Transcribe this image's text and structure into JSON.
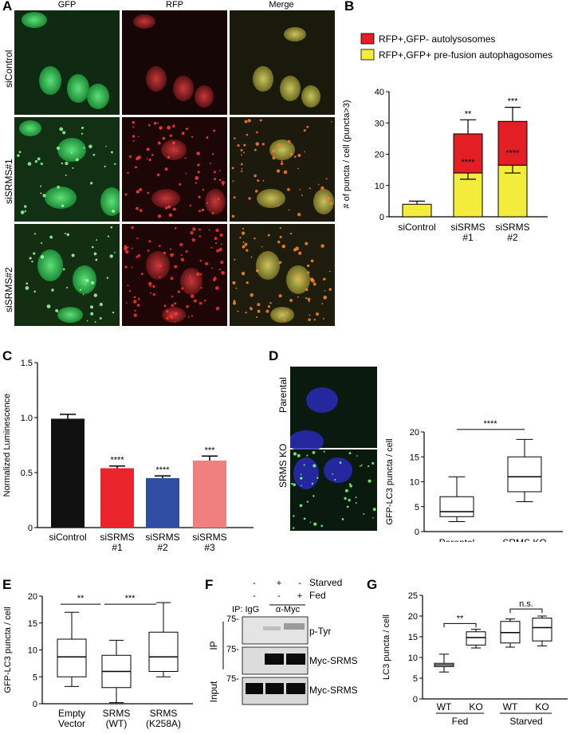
{
  "panels": {
    "A": {
      "label": "A",
      "columns": [
        "GFP",
        "RFP",
        "Merge"
      ],
      "rows": [
        "siControl",
        "siSRMS#1",
        "siSRMS#2"
      ]
    },
    "B": {
      "label": "B",
      "legend": [
        "RFP+,GFP- autolysosomes",
        "RFP+,GFP+ pre-fusion autophagosomes"
      ],
      "colors": {
        "red": "#e31e24",
        "yellow": "#f4ec3b"
      }
    },
    "C": {
      "label": "C"
    },
    "D": {
      "label": "D",
      "images": [
        "Parental",
        "SRMS KO"
      ]
    },
    "E": {
      "label": "E"
    },
    "F": {
      "label": "F",
      "conditions": {
        "row1": {
          "label": "Starved",
          "marks": [
            "-",
            "+",
            "-"
          ]
        },
        "row2": {
          "label": "Fed",
          "marks": [
            "-",
            "-",
            "+"
          ]
        }
      },
      "ip_labels": {
        "igg": "IP: IgG",
        "myc": "α-Myc"
      },
      "side_labels": {
        "ip": "IP",
        "input": "Input"
      },
      "mw": [
        "75-",
        "75-",
        "75-"
      ],
      "bands": [
        "p-Tyr",
        "Myc-SRMS",
        "Myc-SRMS"
      ]
    },
    "G": {
      "label": "G"
    }
  },
  "chart_data": [
    {
      "id": "B",
      "type": "bar",
      "stacked": true,
      "categories": [
        "siControl",
        "siSRMS\n#1",
        "siSRMS\n#2"
      ],
      "series": [
        {
          "name": "RFP+,GFP+ pre-fusion autophagosomes",
          "color": "#f4ec3b",
          "values": [
            4,
            14,
            16.5
          ],
          "errors": [
            1,
            2,
            2.5
          ]
        },
        {
          "name": "RFP+,GFP- autolysosomes",
          "color": "#e31e24",
          "values": [
            0,
            12.5,
            14
          ],
          "errors": [
            0,
            4.5,
            4.5
          ]
        }
      ],
      "annotations_top": [
        "",
        "**",
        "***"
      ],
      "annotations_inner": [
        "",
        "****",
        "****"
      ],
      "ylabel": "# of puncta / cell (puncta>3)",
      "ylim": [
        0,
        40
      ],
      "yticks": [
        0,
        10,
        20,
        30,
        40
      ]
    },
    {
      "id": "C",
      "type": "bar",
      "categories": [
        "siControl",
        "siSRMS\n#1",
        "siSRMS\n#2",
        "siSRMS\n#3"
      ],
      "values": [
        0.99,
        0.54,
        0.45,
        0.61
      ],
      "errors": [
        0.04,
        0.02,
        0.02,
        0.04
      ],
      "colors": [
        "#111111",
        "#e9252b",
        "#2f4ea3",
        "#f08080"
      ],
      "annotations": [
        "",
        "****",
        "****",
        "***"
      ],
      "ylabel": "Normalized Luminescence",
      "ylim": [
        0,
        1.5
      ],
      "yticks": [
        "0",
        "0.5",
        "1.0",
        "1.5"
      ]
    },
    {
      "id": "D",
      "type": "box",
      "categories": [
        "Parental",
        "SRMS KO"
      ],
      "boxes": [
        {
          "min": 2,
          "q1": 3,
          "median": 4,
          "q3": 7,
          "max": 11
        },
        {
          "min": 6,
          "q1": 8,
          "median": 11,
          "q3": 15,
          "max": 18.5
        }
      ],
      "significance": "****",
      "ylabel": "GFP-LC3 puncta / cell",
      "ylim": [
        0,
        20
      ],
      "yticks": [
        0,
        5,
        10,
        15,
        20
      ]
    },
    {
      "id": "E",
      "type": "box",
      "categories": [
        "Empty\nVector",
        "SRMS\n(WT)",
        "SRMS\n(K258A)"
      ],
      "boxes": [
        {
          "min": 3.2,
          "q1": 5,
          "median": 8.7,
          "q3": 12,
          "max": 17
        },
        {
          "min": 0.2,
          "q1": 3,
          "median": 6,
          "q3": 9,
          "max": 11.8
        },
        {
          "min": 5,
          "q1": 6,
          "median": 8.7,
          "q3": 13.3,
          "max": 18.8
        }
      ],
      "significance": [
        "**",
        "***"
      ],
      "ylabel": "GFP-LC3 puncta / cell",
      "ylim": [
        0,
        20
      ],
      "yticks": [
        0,
        5,
        10,
        15,
        20
      ]
    },
    {
      "id": "G",
      "type": "box",
      "categories": [
        "WT",
        "KO",
        "WT",
        "KO"
      ],
      "groups": [
        "Fed",
        "Starved"
      ],
      "boxes": [
        {
          "min": 6.5,
          "q1": 7.8,
          "median": 8.2,
          "q3": 8.6,
          "max": 10.8
        },
        {
          "min": 12.3,
          "q1": 13,
          "median": 14.8,
          "q3": 16.2,
          "max": 16.8
        },
        {
          "min": 12.5,
          "q1": 13.5,
          "median": 16,
          "q3": 18.7,
          "max": 19.3
        },
        {
          "min": 12.8,
          "q1": 14,
          "median": 17.2,
          "q3": 19.5,
          "max": 20
        }
      ],
      "significance": [
        "**",
        "n.s."
      ],
      "ylabel": "LC3 puncta / cell",
      "ylim": [
        0,
        25
      ],
      "yticks": [
        0,
        5,
        10,
        15,
        20,
        25
      ]
    }
  ]
}
